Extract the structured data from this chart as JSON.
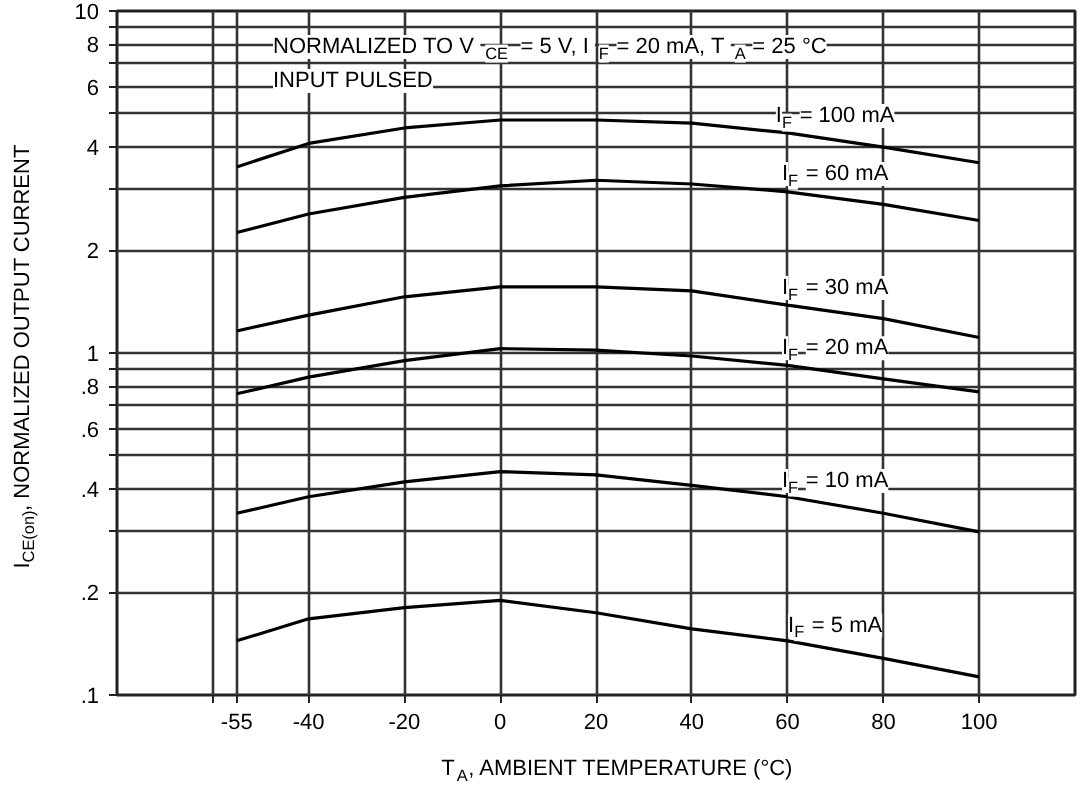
{
  "chart_data": {
    "type": "line",
    "xlabel": "T$_{A}$, AMBIENT TEMPERATURE (°C)",
    "ylabel": "I$_{CE(on)}$, NORMALIZED OUTPUT CURRENT",
    "annotations": [
      "NORMALIZED TO  V$_{CE}$  = 5 V,  I$_{F}$ = 20 mA,  T$_{A}$ = 25 °C",
      "INPUT PULSED"
    ],
    "x": [
      -55,
      -40,
      -20,
      0,
      20,
      40,
      60,
      80,
      100
    ],
    "xlim": [
      -80,
      120
    ],
    "xticks": [
      {
        "value": -60,
        "label": null
      },
      -55,
      -40,
      -20,
      0,
      20,
      40,
      60,
      80,
      100
    ],
    "ylim": [
      0.1,
      10
    ],
    "yticks": [
      {
        "value": 0.1,
        "label": ".1"
      },
      {
        "value": 0.2,
        "label": ".2"
      },
      {
        "value": 0.3,
        "label": null
      },
      {
        "value": 0.4,
        "label": ".4"
      },
      {
        "value": 0.5,
        "label": null
      },
      {
        "value": 0.6,
        "label": ".6"
      },
      {
        "value": 0.7,
        "label": null
      },
      {
        "value": 0.8,
        "label": ".8"
      },
      {
        "value": 0.9,
        "label": null
      },
      1,
      2,
      {
        "value": 3,
        "label": null
      },
      4,
      {
        "value": 5,
        "label": null
      },
      6,
      {
        "value": 7,
        "label": null
      },
      8,
      {
        "value": 9,
        "label": null
      },
      10
    ],
    "log": "y",
    "grid": true,
    "series": [
      {
        "name": "I$_{F}$ = 100 mA",
        "color": "#000000",
        "values": [
          3.5,
          4.1,
          4.55,
          4.8,
          4.8,
          4.7,
          4.4,
          4.0,
          3.6
        ]
      },
      {
        "name": "I$_{F}$ = 60 mA",
        "color": "#000000",
        "values": [
          2.25,
          2.55,
          2.85,
          3.08,
          3.2,
          3.12,
          2.96,
          2.72,
          2.44
        ]
      },
      {
        "name": "I$_{F}$ = 30 mA",
        "color": "#000000",
        "values": [
          1.16,
          1.29,
          1.46,
          1.56,
          1.56,
          1.52,
          1.38,
          1.26,
          1.11
        ]
      },
      {
        "name": "I$_{F}$ = 20 mA",
        "color": "#000000",
        "values": [
          0.76,
          0.85,
          0.95,
          1.03,
          1.02,
          0.98,
          0.92,
          0.84,
          0.77
        ]
      },
      {
        "name": "I$_{F}$ = 10 mA",
        "color": "#000000",
        "values": [
          0.34,
          0.38,
          0.42,
          0.45,
          0.44,
          0.41,
          0.38,
          0.34,
          0.3
        ]
      },
      {
        "name": "I$_{F}$ = 5 mA",
        "color": "#000000",
        "values": [
          0.144,
          0.167,
          0.18,
          0.189,
          0.174,
          0.156,
          0.144,
          0.128,
          0.113
        ]
      }
    ]
  }
}
